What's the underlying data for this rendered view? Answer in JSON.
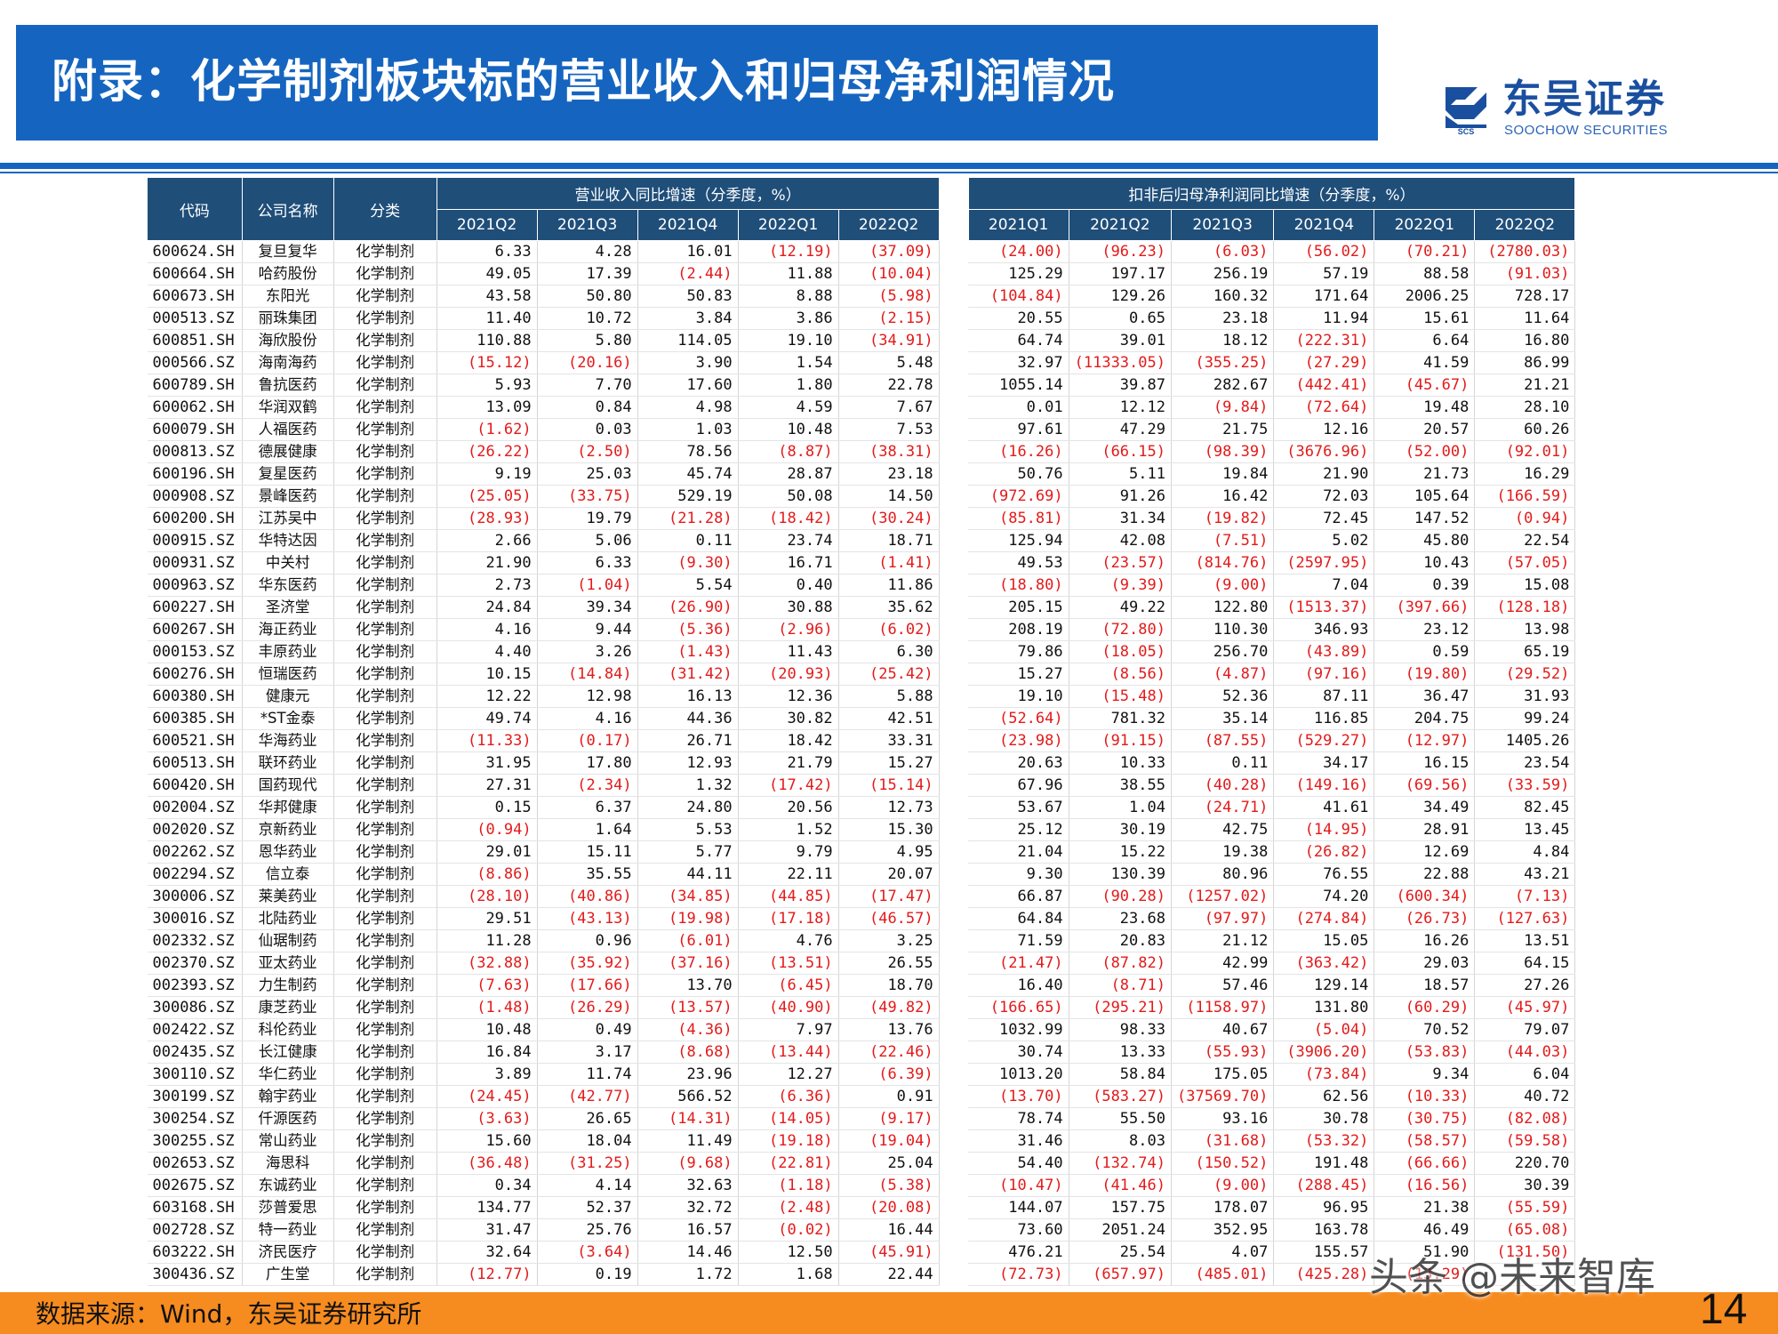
{
  "header": {
    "title": "附录：化学制剂板块标的营业收入和归母净利润情况"
  },
  "logo": {
    "name_cn": "东吴证券",
    "name_en": "SOOCHOW SECURITIES",
    "mark": "SCS"
  },
  "table": {
    "col_code": "代码",
    "col_name": "公司名称",
    "col_cat": "分类",
    "group_revenue": "营业收入同比增速（分季度，%）",
    "group_profit": "扣非后归母净利润同比增速（分季度，%）",
    "revenue_quarters": [
      "2021Q2",
      "2021Q3",
      "2021Q4",
      "2022Q1",
      "2022Q2"
    ],
    "profit_quarters": [
      "2021Q1",
      "2021Q2",
      "2021Q3",
      "2021Q4",
      "2022Q1",
      "2022Q2"
    ],
    "rows": [
      {
        "code": "600624.SH",
        "name": "复旦复华",
        "cat": "化学制剂",
        "rev": [
          "6.33",
          "4.28",
          "16.01",
          "(12.19)",
          "(37.09)"
        ],
        "np": [
          "(24.00)",
          "(96.23)",
          "(6.03)",
          "(56.02)",
          "(70.21)",
          "(2780.03)"
        ]
      },
      {
        "code": "600664.SH",
        "name": "哈药股份",
        "cat": "化学制剂",
        "rev": [
          "49.05",
          "17.39",
          "(2.44)",
          "11.88",
          "(10.04)"
        ],
        "np": [
          "125.29",
          "197.17",
          "256.19",
          "57.19",
          "88.58",
          "(91.03)"
        ]
      },
      {
        "code": "600673.SH",
        "name": "东阳光",
        "cat": "化学制剂",
        "rev": [
          "43.58",
          "50.80",
          "50.83",
          "8.88",
          "(5.98)"
        ],
        "np": [
          "(104.84)",
          "129.26",
          "160.32",
          "171.64",
          "2006.25",
          "728.17"
        ]
      },
      {
        "code": "000513.SZ",
        "name": "丽珠集团",
        "cat": "化学制剂",
        "rev": [
          "11.40",
          "10.72",
          "3.84",
          "3.86",
          "(2.15)"
        ],
        "np": [
          "20.55",
          "0.65",
          "23.18",
          "11.94",
          "15.61",
          "11.64"
        ]
      },
      {
        "code": "600851.SH",
        "name": "海欣股份",
        "cat": "化学制剂",
        "rev": [
          "110.88",
          "5.80",
          "114.05",
          "19.10",
          "(34.91)"
        ],
        "np": [
          "64.74",
          "39.01",
          "18.12",
          "(222.31)",
          "6.64",
          "16.80"
        ]
      },
      {
        "code": "000566.SZ",
        "name": "海南海药",
        "cat": "化学制剂",
        "rev": [
          "(15.12)",
          "(20.16)",
          "3.90",
          "1.54",
          "5.48"
        ],
        "np": [
          "32.97",
          "(11333.05)",
          "(355.25)",
          "(27.29)",
          "41.59",
          "86.99"
        ]
      },
      {
        "code": "600789.SH",
        "name": "鲁抗医药",
        "cat": "化学制剂",
        "rev": [
          "5.93",
          "7.70",
          "17.60",
          "1.80",
          "22.78"
        ],
        "np": [
          "1055.14",
          "39.87",
          "282.67",
          "(442.41)",
          "(45.67)",
          "21.21"
        ]
      },
      {
        "code": "600062.SH",
        "name": "华润双鹤",
        "cat": "化学制剂",
        "rev": [
          "13.09",
          "0.84",
          "4.98",
          "4.59",
          "7.67"
        ],
        "np": [
          "0.01",
          "12.12",
          "(9.84)",
          "(72.64)",
          "19.48",
          "28.10"
        ]
      },
      {
        "code": "600079.SH",
        "name": "人福医药",
        "cat": "化学制剂",
        "rev": [
          "(1.62)",
          "0.03",
          "1.03",
          "10.48",
          "7.53"
        ],
        "np": [
          "97.61",
          "47.29",
          "21.75",
          "12.16",
          "20.57",
          "60.26"
        ]
      },
      {
        "code": "000813.SZ",
        "name": "德展健康",
        "cat": "化学制剂",
        "rev": [
          "(26.22)",
          "(2.50)",
          "78.56",
          "(8.87)",
          "(38.31)"
        ],
        "np": [
          "(16.26)",
          "(66.15)",
          "(98.39)",
          "(3676.96)",
          "(52.00)",
          "(92.01)"
        ]
      },
      {
        "code": "600196.SH",
        "name": "复星医药",
        "cat": "化学制剂",
        "rev": [
          "9.19",
          "25.03",
          "45.74",
          "28.87",
          "23.18"
        ],
        "np": [
          "50.76",
          "5.11",
          "19.84",
          "21.90",
          "21.73",
          "16.29"
        ]
      },
      {
        "code": "000908.SZ",
        "name": "景峰医药",
        "cat": "化学制剂",
        "rev": [
          "(25.05)",
          "(33.75)",
          "529.19",
          "50.08",
          "14.50"
        ],
        "np": [
          "(972.69)",
          "91.26",
          "16.42",
          "72.03",
          "105.64",
          "(166.59)"
        ]
      },
      {
        "code": "600200.SH",
        "name": "江苏吴中",
        "cat": "化学制剂",
        "rev": [
          "(28.93)",
          "19.79",
          "(21.28)",
          "(18.42)",
          "(30.24)"
        ],
        "np": [
          "(85.81)",
          "31.34",
          "(19.82)",
          "72.45",
          "147.52",
          "(0.94)"
        ]
      },
      {
        "code": "000915.SZ",
        "name": "华特达因",
        "cat": "化学制剂",
        "rev": [
          "2.66",
          "5.06",
          "0.11",
          "23.74",
          "18.71"
        ],
        "np": [
          "125.94",
          "42.08",
          "(7.51)",
          "5.02",
          "45.80",
          "22.54"
        ]
      },
      {
        "code": "000931.SZ",
        "name": "中关村",
        "cat": "化学制剂",
        "rev": [
          "21.90",
          "6.33",
          "(9.30)",
          "16.71",
          "(1.41)"
        ],
        "np": [
          "49.53",
          "(23.57)",
          "(814.76)",
          "(2597.95)",
          "10.43",
          "(57.05)"
        ]
      },
      {
        "code": "000963.SZ",
        "name": "华东医药",
        "cat": "化学制剂",
        "rev": [
          "2.73",
          "(1.04)",
          "5.54",
          "0.40",
          "11.86"
        ],
        "np": [
          "(18.80)",
          "(9.39)",
          "(9.00)",
          "7.04",
          "0.39",
          "15.08"
        ]
      },
      {
        "code": "600227.SH",
        "name": "圣济堂",
        "cat": "化学制剂",
        "rev": [
          "24.84",
          "39.34",
          "(26.90)",
          "30.88",
          "35.62"
        ],
        "np": [
          "205.15",
          "49.22",
          "122.80",
          "(1513.37)",
          "(397.66)",
          "(128.18)"
        ]
      },
      {
        "code": "600267.SH",
        "name": "海正药业",
        "cat": "化学制剂",
        "rev": [
          "4.16",
          "9.44",
          "(5.36)",
          "(2.96)",
          "(6.02)"
        ],
        "np": [
          "208.19",
          "(72.80)",
          "110.30",
          "346.93",
          "23.12",
          "13.98"
        ]
      },
      {
        "code": "000153.SZ",
        "name": "丰原药业",
        "cat": "化学制剂",
        "rev": [
          "4.40",
          "3.26",
          "(1.43)",
          "11.43",
          "6.30"
        ],
        "np": [
          "79.86",
          "(18.05)",
          "256.70",
          "(43.89)",
          "0.59",
          "65.19"
        ]
      },
      {
        "code": "600276.SH",
        "name": "恒瑞医药",
        "cat": "化学制剂",
        "rev": [
          "10.15",
          "(14.84)",
          "(31.42)",
          "(20.93)",
          "(25.42)"
        ],
        "np": [
          "15.27",
          "(8.56)",
          "(4.87)",
          "(97.16)",
          "(19.80)",
          "(29.52)"
        ]
      },
      {
        "code": "600380.SH",
        "name": "健康元",
        "cat": "化学制剂",
        "rev": [
          "12.22",
          "12.98",
          "16.13",
          "12.36",
          "5.88"
        ],
        "np": [
          "19.10",
          "(15.48)",
          "52.36",
          "87.11",
          "36.47",
          "31.93"
        ]
      },
      {
        "code": "600385.SH",
        "name": "*ST金泰",
        "cat": "化学制剂",
        "rev": [
          "49.74",
          "4.16",
          "44.36",
          "30.82",
          "42.51"
        ],
        "np": [
          "(52.64)",
          "781.32",
          "35.14",
          "116.85",
          "204.75",
          "99.24"
        ]
      },
      {
        "code": "600521.SH",
        "name": "华海药业",
        "cat": "化学制剂",
        "rev": [
          "(11.33)",
          "(0.17)",
          "26.71",
          "18.42",
          "33.31"
        ],
        "np": [
          "(23.98)",
          "(91.15)",
          "(87.55)",
          "(529.27)",
          "(12.97)",
          "1405.26"
        ]
      },
      {
        "code": "600513.SH",
        "name": "联环药业",
        "cat": "化学制剂",
        "rev": [
          "31.95",
          "17.80",
          "12.93",
          "21.79",
          "15.27"
        ],
        "np": [
          "20.63",
          "10.33",
          "0.11",
          "34.17",
          "16.15",
          "23.54"
        ]
      },
      {
        "code": "600420.SH",
        "name": "国药现代",
        "cat": "化学制剂",
        "rev": [
          "27.31",
          "(2.34)",
          "1.32",
          "(17.42)",
          "(15.14)"
        ],
        "np": [
          "67.96",
          "38.55",
          "(40.28)",
          "(149.16)",
          "(69.56)",
          "(33.59)"
        ]
      },
      {
        "code": "002004.SZ",
        "name": "华邦健康",
        "cat": "化学制剂",
        "rev": [
          "0.15",
          "6.37",
          "24.80",
          "20.56",
          "12.73"
        ],
        "np": [
          "53.67",
          "1.04",
          "(24.71)",
          "41.61",
          "34.49",
          "82.45"
        ]
      },
      {
        "code": "002020.SZ",
        "name": "京新药业",
        "cat": "化学制剂",
        "rev": [
          "(0.94)",
          "1.64",
          "5.53",
          "1.52",
          "15.30"
        ],
        "np": [
          "25.12",
          "30.19",
          "42.75",
          "(14.95)",
          "28.91",
          "13.45"
        ]
      },
      {
        "code": "002262.SZ",
        "name": "恩华药业",
        "cat": "化学制剂",
        "rev": [
          "29.01",
          "15.11",
          "5.77",
          "9.79",
          "4.95"
        ],
        "np": [
          "21.04",
          "15.22",
          "19.38",
          "(26.82)",
          "12.69",
          "4.84"
        ]
      },
      {
        "code": "002294.SZ",
        "name": "信立泰",
        "cat": "化学制剂",
        "rev": [
          "(8.86)",
          "35.55",
          "44.11",
          "22.11",
          "20.07"
        ],
        "np": [
          "9.30",
          "130.39",
          "80.96",
          "76.55",
          "22.88",
          "43.21"
        ]
      },
      {
        "code": "300006.SZ",
        "name": "莱美药业",
        "cat": "化学制剂",
        "rev": [
          "(28.10)",
          "(40.86)",
          "(34.85)",
          "(44.85)",
          "(17.47)"
        ],
        "np": [
          "66.87",
          "(90.28)",
          "(1257.02)",
          "74.20",
          "(600.34)",
          "(7.13)"
        ]
      },
      {
        "code": "300016.SZ",
        "name": "北陆药业",
        "cat": "化学制剂",
        "rev": [
          "29.51",
          "(43.13)",
          "(19.98)",
          "(17.18)",
          "(46.57)"
        ],
        "np": [
          "64.84",
          "23.68",
          "(97.97)",
          "(274.84)",
          "(26.73)",
          "(127.63)"
        ]
      },
      {
        "code": "002332.SZ",
        "name": "仙琚制药",
        "cat": "化学制剂",
        "rev": [
          "11.28",
          "0.96",
          "(6.01)",
          "4.76",
          "3.25"
        ],
        "np": [
          "71.59",
          "20.83",
          "21.12",
          "15.05",
          "16.26",
          "13.51"
        ]
      },
      {
        "code": "002370.SZ",
        "name": "亚太药业",
        "cat": "化学制剂",
        "rev": [
          "(32.88)",
          "(35.92)",
          "(37.16)",
          "(13.51)",
          "26.55"
        ],
        "np": [
          "(21.47)",
          "(87.82)",
          "42.99",
          "(363.42)",
          "29.03",
          "64.15"
        ]
      },
      {
        "code": "002393.SZ",
        "name": "力生制药",
        "cat": "化学制剂",
        "rev": [
          "(7.63)",
          "(17.66)",
          "13.70",
          "(6.45)",
          "18.70"
        ],
        "np": [
          "16.40",
          "(8.71)",
          "57.46",
          "129.14",
          "18.57",
          "27.26"
        ]
      },
      {
        "code": "300086.SZ",
        "name": "康芝药业",
        "cat": "化学制剂",
        "rev": [
          "(1.48)",
          "(26.29)",
          "(13.57)",
          "(40.90)",
          "(49.82)"
        ],
        "np": [
          "(166.65)",
          "(295.21)",
          "(1158.97)",
          "131.80",
          "(60.29)",
          "(45.97)"
        ]
      },
      {
        "code": "002422.SZ",
        "name": "科伦药业",
        "cat": "化学制剂",
        "rev": [
          "10.48",
          "0.49",
          "(4.36)",
          "7.97",
          "13.76"
        ],
        "np": [
          "1032.99",
          "98.33",
          "40.67",
          "(5.04)",
          "70.52",
          "79.07"
        ]
      },
      {
        "code": "002435.SZ",
        "name": "长江健康",
        "cat": "化学制剂",
        "rev": [
          "16.84",
          "3.17",
          "(8.68)",
          "(13.44)",
          "(22.46)"
        ],
        "np": [
          "30.74",
          "13.33",
          "(55.93)",
          "(3906.20)",
          "(53.83)",
          "(44.03)"
        ]
      },
      {
        "code": "300110.SZ",
        "name": "华仁药业",
        "cat": "化学制剂",
        "rev": [
          "3.89",
          "11.74",
          "23.96",
          "12.27",
          "(6.39)"
        ],
        "np": [
          "1013.20",
          "58.84",
          "175.05",
          "(73.84)",
          "9.34",
          "6.04"
        ]
      },
      {
        "code": "300199.SZ",
        "name": "翰宇药业",
        "cat": "化学制剂",
        "rev": [
          "(24.45)",
          "(42.77)",
          "566.52",
          "(6.36)",
          "0.91"
        ],
        "np": [
          "(13.70)",
          "(583.27)",
          "(37569.70)",
          "62.56",
          "(10.33)",
          "40.72"
        ]
      },
      {
        "code": "300254.SZ",
        "name": "仟源医药",
        "cat": "化学制剂",
        "rev": [
          "(3.63)",
          "26.65",
          "(14.31)",
          "(14.05)",
          "(9.17)"
        ],
        "np": [
          "78.74",
          "55.50",
          "93.16",
          "30.78",
          "(30.75)",
          "(82.08)"
        ]
      },
      {
        "code": "300255.SZ",
        "name": "常山药业",
        "cat": "化学制剂",
        "rev": [
          "15.60",
          "18.04",
          "11.49",
          "(19.18)",
          "(19.04)"
        ],
        "np": [
          "31.46",
          "8.03",
          "(31.68)",
          "(53.32)",
          "(58.57)",
          "(59.58)"
        ]
      },
      {
        "code": "002653.SZ",
        "name": "海思科",
        "cat": "化学制剂",
        "rev": [
          "(36.48)",
          "(31.25)",
          "(9.68)",
          "(22.81)",
          "25.04"
        ],
        "np": [
          "54.40",
          "(132.74)",
          "(150.52)",
          "191.48",
          "(66.66)",
          "220.70"
        ]
      },
      {
        "code": "002675.SZ",
        "name": "东诚药业",
        "cat": "化学制剂",
        "rev": [
          "0.34",
          "4.14",
          "32.63",
          "(1.18)",
          "(5.38)"
        ],
        "np": [
          "(10.47)",
          "(41.46)",
          "(9.00)",
          "(288.45)",
          "(16.56)",
          "30.39"
        ]
      },
      {
        "code": "603168.SH",
        "name": "莎普爱思",
        "cat": "化学制剂",
        "rev": [
          "134.77",
          "52.37",
          "32.72",
          "(2.48)",
          "(20.08)"
        ],
        "np": [
          "144.07",
          "157.75",
          "178.07",
          "96.95",
          "21.38",
          "(55.59)"
        ]
      },
      {
        "code": "002728.SZ",
        "name": "特一药业",
        "cat": "化学制剂",
        "rev": [
          "31.47",
          "25.76",
          "16.57",
          "(0.02)",
          "16.44"
        ],
        "np": [
          "73.60",
          "2051.24",
          "352.95",
          "163.78",
          "46.49",
          "(65.08)"
        ]
      },
      {
        "code": "603222.SH",
        "name": "济民医疗",
        "cat": "化学制剂",
        "rev": [
          "32.64",
          "(3.64)",
          "14.46",
          "12.50",
          "(45.91)"
        ],
        "np": [
          "476.21",
          "25.54",
          "4.07",
          "155.57",
          "51.90",
          "(131.50)"
        ]
      },
      {
        "code": "300436.SZ",
        "name": "广生堂",
        "cat": "化学制剂",
        "rev": [
          "(12.77)",
          "0.19",
          "1.72",
          "1.68",
          "22.44"
        ],
        "np": [
          "(72.73)",
          "(657.97)",
          "(485.01)",
          "(425.28)",
          "(13.29)",
          ""
        ]
      }
    ]
  },
  "footer": {
    "source": "数据来源：Wind，东吴证券研究所",
    "page": "14"
  },
  "watermark": "头条 @未来智库",
  "colors": {
    "header_blue": "#1565c0",
    "table_header": "#1f4e79",
    "negative_red": "#e31a1a",
    "footer_orange": "#f68b1f"
  }
}
